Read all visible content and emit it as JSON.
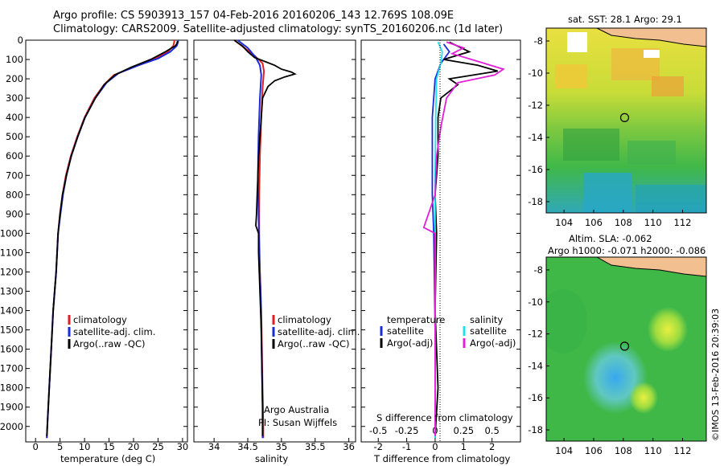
{
  "header": {
    "title_line1": "Argo profile: CS 5903913_157 04-Feb-2016 20160206_143 12.769S 108.09E",
    "title_line2": "Climatology: CARS2009. Satellite-adjusted climatology: synTS_20160206.nc (1d later)"
  },
  "side_stamp": "©IMOS 13-Feb-2016 20:39:03",
  "colors": {
    "climatology": "#e02020",
    "satellite": "#1a2bdc",
    "argo": "#000000",
    "sat_salinity": "#22e0ee",
    "argo_salinity": "#e020d8"
  },
  "depth_ticks": [
    "0",
    "100",
    "200",
    "300",
    "400",
    "500",
    "600",
    "700",
    "800",
    "900",
    "1000",
    "1100",
    "1200",
    "1300",
    "1400",
    "1500",
    "1600",
    "1700",
    "1800",
    "1900",
    "2000"
  ],
  "chart_data": [
    {
      "type": "line",
      "id": "temperature",
      "xlabel": "temperature (deg C)",
      "ylabel": "",
      "xlim": [
        -2,
        31
      ],
      "ylim": [
        2080,
        0
      ],
      "x_ticks": [
        "0",
        "5",
        "10",
        "15",
        "20",
        "25",
        "30"
      ],
      "legend": [
        "climatology",
        "satellite-adj. clim.",
        "Argo(..raw -QC)"
      ],
      "legend_placement": "lower-right",
      "series": [
        {
          "name": "climatology",
          "points": [
            [
              28.3,
              0
            ],
            [
              28.3,
              10
            ],
            [
              28.1,
              30
            ],
            [
              27,
              60
            ],
            [
              24,
              100
            ],
            [
              20,
              140
            ],
            [
              16,
              180
            ],
            [
              14,
              230
            ],
            [
              12,
              300
            ],
            [
              10,
              400
            ],
            [
              8.5,
              500
            ],
            [
              7.2,
              600
            ],
            [
              6.2,
              700
            ],
            [
              5.5,
              800
            ],
            [
              5,
              900
            ],
            [
              4.6,
              1000
            ],
            [
              4.2,
              1200
            ],
            [
              3.6,
              1400
            ],
            [
              3.2,
              1600
            ],
            [
              2.8,
              1800
            ],
            [
              2.4,
              2000
            ],
            [
              2.3,
              2060
            ]
          ]
        },
        {
          "name": "satellite-adj. clim.",
          "points": [
            [
              29.1,
              0
            ],
            [
              29.1,
              10
            ],
            [
              28.8,
              30
            ],
            [
              27.5,
              60
            ],
            [
              25,
              95
            ],
            [
              21,
              130
            ],
            [
              17,
              170
            ],
            [
              14.5,
              220
            ],
            [
              12.2,
              300
            ],
            [
              10.1,
              400
            ],
            [
              8.6,
              500
            ],
            [
              7.3,
              600
            ],
            [
              6.3,
              700
            ],
            [
              5.6,
              800
            ],
            [
              5.1,
              900
            ],
            [
              4.6,
              1000
            ],
            [
              4.2,
              1200
            ],
            [
              3.6,
              1400
            ],
            [
              3.2,
              1600
            ],
            [
              2.8,
              1800
            ],
            [
              2.4,
              2000
            ],
            [
              2.3,
              2060
            ]
          ]
        },
        {
          "name": "Argo(..raw -QC)",
          "points": [
            [
              29.0,
              5
            ],
            [
              28.8,
              20
            ],
            [
              28.5,
              30
            ],
            [
              26.5,
              60
            ],
            [
              23.5,
              100
            ],
            [
              19.5,
              140
            ],
            [
              16.2,
              180
            ],
            [
              14,
              230
            ],
            [
              12.2,
              300
            ],
            [
              10.1,
              400
            ],
            [
              8.6,
              500
            ],
            [
              7.3,
              600
            ],
            [
              6.3,
              700
            ],
            [
              5.5,
              800
            ],
            [
              5,
              900
            ],
            [
              4.6,
              1000
            ],
            [
              4.2,
              1200
            ],
            [
              3.6,
              1400
            ],
            [
              3.2,
              1600
            ],
            [
              2.8,
              1800
            ],
            [
              2.4,
              2000
            ],
            [
              2.3,
              2050
            ]
          ]
        }
      ]
    },
    {
      "type": "line",
      "id": "salinity",
      "xlabel": "salinity",
      "ylabel": "",
      "xlim": [
        33.7,
        36.1
      ],
      "ylim": [
        2080,
        0
      ],
      "x_ticks": [
        "34",
        "34.5",
        "35",
        "35.5",
        "36"
      ],
      "legend": [
        "climatology",
        "satellite-adj. clim.",
        "Argo(..raw -QC)"
      ],
      "legend_placement": "lower-right",
      "annotation": [
        "Argo Australia",
        "PI: Susan Wijffels"
      ],
      "series": [
        {
          "name": "climatology",
          "points": [
            [
              34.3,
              0
            ],
            [
              34.45,
              40
            ],
            [
              34.6,
              80
            ],
            [
              34.72,
              120
            ],
            [
              34.74,
              160
            ],
            [
              34.72,
              250
            ],
            [
              34.7,
              400
            ],
            [
              34.68,
              600
            ],
            [
              34.67,
              800
            ],
            [
              34.67,
              1000
            ],
            [
              34.68,
              1200
            ],
            [
              34.7,
              1400
            ],
            [
              34.71,
              1600
            ],
            [
              34.72,
              1800
            ],
            [
              34.73,
              2000
            ],
            [
              34.73,
              2060
            ]
          ]
        },
        {
          "name": "satellite-adj. clim.",
          "points": [
            [
              34.35,
              0
            ],
            [
              34.5,
              40
            ],
            [
              34.62,
              90
            ],
            [
              34.68,
              130
            ],
            [
              34.7,
              180
            ],
            [
              34.68,
              300
            ],
            [
              34.66,
              500
            ],
            [
              34.65,
              700
            ],
            [
              34.66,
              900
            ],
            [
              34.67,
              1100
            ],
            [
              34.69,
              1300
            ],
            [
              34.7,
              1500
            ],
            [
              34.71,
              1700
            ],
            [
              34.72,
              1900
            ],
            [
              34.72,
              2060
            ]
          ]
        },
        {
          "name": "Argo(..raw -QC)",
          "points": [
            [
              34.3,
              0
            ],
            [
              34.42,
              30
            ],
            [
              34.5,
              60
            ],
            [
              34.6,
              90
            ],
            [
              34.75,
              110
            ],
            [
              34.9,
              130
            ],
            [
              35.0,
              150
            ],
            [
              35.15,
              165
            ],
            [
              35.2,
              175
            ],
            [
              35.05,
              190
            ],
            [
              34.9,
              210
            ],
            [
              34.8,
              240
            ],
            [
              34.72,
              300
            ],
            [
              34.7,
              400
            ],
            [
              34.68,
              500
            ],
            [
              34.66,
              600
            ],
            [
              34.65,
              700
            ],
            [
              34.64,
              800
            ],
            [
              34.63,
              900
            ],
            [
              34.62,
              960
            ],
            [
              34.66,
              1000
            ],
            [
              34.66,
              1100
            ],
            [
              34.68,
              1300
            ],
            [
              34.7,
              1500
            ],
            [
              34.71,
              1700
            ],
            [
              34.72,
              1900
            ],
            [
              34.72,
              2050
            ]
          ]
        }
      ]
    },
    {
      "type": "line",
      "id": "difference",
      "xlabel": "T difference from climatology",
      "top_xlabel": "S difference from climatology",
      "ylabel": "",
      "xlim": [
        -2.6,
        3
      ],
      "ylim": [
        2080,
        0
      ],
      "x_ticks": [
        "-2",
        "-1",
        "0",
        "1",
        "2"
      ],
      "top_ticks": [
        "-0.5",
        "-0.25",
        "0",
        "0.25",
        "0.5"
      ],
      "legend_groups": [
        {
          "heading": "temperature",
          "entries": [
            "satellite",
            "Argo(-adj)"
          ]
        },
        {
          "heading": "salinity",
          "entries": [
            "satellite",
            "Argo(-adj)"
          ]
        }
      ],
      "series": [
        {
          "name": "temperature satellite",
          "points": [
            [
              0.3,
              20
            ],
            [
              0.5,
              60
            ],
            [
              0.2,
              120
            ],
            [
              0,
              200
            ],
            [
              -0.1,
              400
            ],
            [
              -0.1,
              600
            ],
            [
              -0.1,
              800
            ],
            [
              -0.05,
              1000
            ],
            [
              0,
              1500
            ],
            [
              0,
              2060
            ]
          ]
        },
        {
          "name": "temperature Argo(-adj)",
          "points": [
            [
              0.5,
              10
            ],
            [
              1.2,
              60
            ],
            [
              0.3,
              100
            ],
            [
              1.5,
              130
            ],
            [
              2.2,
              160
            ],
            [
              0.5,
              200
            ],
            [
              0.8,
              230
            ],
            [
              0.2,
              300
            ],
            [
              0.1,
              400
            ],
            [
              0.1,
              600
            ],
            [
              0,
              800
            ],
            [
              0.05,
              1000
            ],
            [
              0,
              1400
            ],
            [
              0.1,
              1800
            ],
            [
              0,
              2050
            ]
          ]
        },
        {
          "name": "salinity satellite",
          "points": [
            [
              0.1,
              10
            ],
            [
              0.25,
              60
            ],
            [
              0.2,
              120
            ],
            [
              0.05,
              200
            ],
            [
              0.02,
              400
            ],
            [
              0,
              700
            ],
            [
              0,
              1000
            ],
            [
              0,
              1400
            ],
            [
              0,
              1800
            ],
            [
              0,
              2060
            ]
          ]
        },
        {
          "name": "salinity Argo(-adj)",
          "points": [
            [
              0.4,
              10
            ],
            [
              1.0,
              40
            ],
            [
              0.6,
              70
            ],
            [
              1.5,
              110
            ],
            [
              2.4,
              150
            ],
            [
              2.1,
              180
            ],
            [
              0.8,
              220
            ],
            [
              0.4,
              300
            ],
            [
              0.2,
              450
            ],
            [
              0.05,
              600
            ],
            [
              0,
              800
            ],
            [
              -0.4,
              970
            ],
            [
              0,
              1000
            ],
            [
              0,
              1500
            ],
            [
              0,
              2050
            ]
          ]
        }
      ]
    },
    {
      "type": "heatmap",
      "id": "sst_map",
      "title": "sat. SST: 28.1  Argo: 29.1",
      "xlim": [
        102.8,
        113.6
      ],
      "ylim": [
        -18.7,
        -7.2
      ],
      "x_ticks": [
        "104",
        "106",
        "108",
        "110",
        "112"
      ],
      "y_ticks": [
        "-8",
        "-10",
        "-12",
        "-14",
        "-16",
        "-18"
      ],
      "marker": {
        "lon": 108.09,
        "lat": -12.769
      }
    },
    {
      "type": "heatmap",
      "id": "sla_map",
      "title_line1": "Altim. SLA: -0.062",
      "title_line2": "Argo h1000: -0.071 h2000: -0.086",
      "xlim": [
        102.8,
        113.6
      ],
      "ylim": [
        -18.7,
        -7.2
      ],
      "x_ticks": [
        "104",
        "106",
        "108",
        "110",
        "112"
      ],
      "y_ticks": [
        "-8",
        "-10",
        "-12",
        "-14",
        "-16",
        "-18"
      ],
      "marker": {
        "lon": 108.09,
        "lat": -12.769
      }
    }
  ]
}
